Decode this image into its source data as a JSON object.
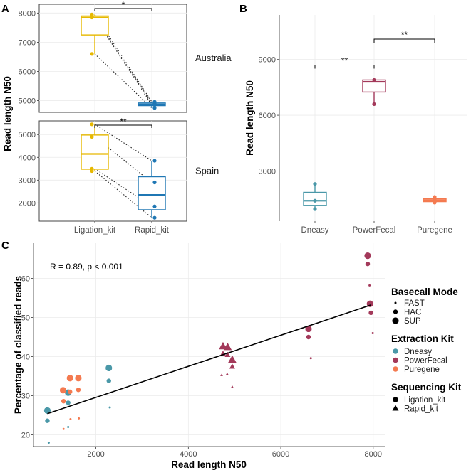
{
  "colors": {
    "Ligation_kit": "#E6B800",
    "Rapid_kit": "#1F77B4",
    "Dneasy": "#4A98A8",
    "PowerFecal": "#A3395A",
    "Puregene": "#F47A50",
    "panel_border": "#444444",
    "grid": "#EBEBEB"
  },
  "chart_data": [
    {
      "panel": "A",
      "type": "box",
      "ylabel": "Read length N50",
      "categories": [
        "Ligation_kit",
        "Rapid_kit"
      ],
      "facets": [
        {
          "name": "Australia",
          "ylim": [
            4600,
            8300
          ],
          "yticks": [
            5000,
            6000,
            7000,
            8000
          ],
          "boxes": [
            {
              "category": "Ligation_kit",
              "min": 6600,
              "q1": 7250,
              "median": 7850,
              "q3": 7900,
              "max": 7950,
              "points": [
                7950,
                7880,
                7850,
                6600
              ]
            },
            {
              "category": "Rapid_kit",
              "min": 4750,
              "q1": 4830,
              "median": 4870,
              "q3": 4920,
              "max": 4960,
              "points": [
                4960,
                4900,
                4850,
                4750
              ]
            }
          ],
          "pairs": [
            [
              7950,
              4960
            ],
            [
              7880,
              4900
            ],
            [
              7850,
              4850
            ],
            [
              6600,
              4750
            ]
          ],
          "significance": "*"
        },
        {
          "name": "Spain",
          "ylim": [
            1200,
            5600
          ],
          "yticks": [
            2000,
            3000,
            4000,
            5000
          ],
          "boxes": [
            {
              "category": "Ligation_kit",
              "min": 3400,
              "q1": 3480,
              "median": 4150,
              "q3": 4980,
              "max": 5450,
              "points": [
                5450,
                4900,
                3500,
                3400
              ]
            },
            {
              "category": "Rapid_kit",
              "min": 1350,
              "q1": 1700,
              "median": 2350,
              "q3": 3150,
              "max": 3850,
              "points": [
                3850,
                2900,
                1850,
                1350
              ]
            }
          ],
          "pairs": [
            [
              5450,
              3850
            ],
            [
              4900,
              2900
            ],
            [
              3500,
              1850
            ],
            [
              3400,
              1350
            ]
          ],
          "significance": "**"
        }
      ]
    },
    {
      "panel": "B",
      "type": "box",
      "ylabel": "Read length N50",
      "ylim": [
        300,
        11400
      ],
      "yticks": [
        3000,
        6000,
        9000
      ],
      "categories": [
        "Dneasy",
        "PowerFecal",
        "Puregene"
      ],
      "boxes": [
        {
          "category": "Dneasy",
          "min": 950,
          "q1": 1150,
          "median": 1400,
          "q3": 1850,
          "max": 2300,
          "points": [
            2300,
            1400,
            950
          ]
        },
        {
          "category": "PowerFecal",
          "min": 6600,
          "q1": 7250,
          "median": 7800,
          "q3": 7900,
          "max": 7950,
          "points": [
            7900,
            6600
          ]
        },
        {
          "category": "Puregene",
          "min": 1280,
          "q1": 1350,
          "median": 1430,
          "q3": 1500,
          "max": 1600,
          "points": [
            1600,
            1450,
            1300
          ]
        }
      ],
      "significance": [
        {
          "from": "Dneasy",
          "to": "PowerFecal",
          "y": 8700,
          "label": "**"
        },
        {
          "from": "PowerFecal",
          "to": "Puregene",
          "y": 10100,
          "label": "**"
        }
      ]
    },
    {
      "panel": "C",
      "type": "scatter",
      "xlabel": "Read length N50",
      "ylabel": "Percentage of classified reads",
      "xlim": [
        650,
        8250
      ],
      "ylim": [
        17,
        69
      ],
      "xticks": [
        2000,
        4000,
        6000,
        8000
      ],
      "yticks": [
        20,
        30,
        40,
        50,
        60
      ],
      "annotation": "R = 0.89, p < 0.001",
      "fit_line": {
        "x": [
          950,
          7950
        ],
        "y": [
          25.4,
          53.2
        ]
      },
      "points": [
        {
          "x": 950,
          "y": 26.2,
          "kit": "Dneasy",
          "mode": "SUP",
          "seq": "Ligation_kit"
        },
        {
          "x": 950,
          "y": 23.6,
          "kit": "Dneasy",
          "mode": "HAC",
          "seq": "Ligation_kit"
        },
        {
          "x": 980,
          "y": 18.0,
          "kit": "Dneasy",
          "mode": "FAST",
          "seq": "Ligation_kit"
        },
        {
          "x": 1400,
          "y": 30.8,
          "kit": "Dneasy",
          "mode": "SUP",
          "seq": "Ligation_kit"
        },
        {
          "x": 1400,
          "y": 28.2,
          "kit": "Dneasy",
          "mode": "HAC",
          "seq": "Ligation_kit"
        },
        {
          "x": 1400,
          "y": 22.0,
          "kit": "Dneasy",
          "mode": "FAST",
          "seq": "Ligation_kit"
        },
        {
          "x": 2280,
          "y": 37.1,
          "kit": "Dneasy",
          "mode": "SUP",
          "seq": "Ligation_kit"
        },
        {
          "x": 2280,
          "y": 33.8,
          "kit": "Dneasy",
          "mode": "HAC",
          "seq": "Ligation_kit"
        },
        {
          "x": 2300,
          "y": 27.0,
          "kit": "Dneasy",
          "mode": "FAST",
          "seq": "Ligation_kit"
        },
        {
          "x": 1290,
          "y": 31.4,
          "kit": "Puregene",
          "mode": "SUP",
          "seq": "Ligation_kit"
        },
        {
          "x": 1300,
          "y": 28.6,
          "kit": "Puregene",
          "mode": "HAC",
          "seq": "Ligation_kit"
        },
        {
          "x": 1300,
          "y": 21.5,
          "kit": "Puregene",
          "mode": "FAST",
          "seq": "Ligation_kit"
        },
        {
          "x": 1440,
          "y": 34.5,
          "kit": "Puregene",
          "mode": "SUP",
          "seq": "Ligation_kit"
        },
        {
          "x": 1440,
          "y": 31.0,
          "kit": "Puregene",
          "mode": "HAC",
          "seq": "Ligation_kit"
        },
        {
          "x": 1450,
          "y": 24.0,
          "kit": "Puregene",
          "mode": "FAST",
          "seq": "Ligation_kit"
        },
        {
          "x": 1620,
          "y": 34.5,
          "kit": "Puregene",
          "mode": "SUP",
          "seq": "Ligation_kit"
        },
        {
          "x": 1620,
          "y": 31.5,
          "kit": "Puregene",
          "mode": "HAC",
          "seq": "Ligation_kit"
        },
        {
          "x": 1630,
          "y": 24.2,
          "kit": "Puregene",
          "mode": "FAST",
          "seq": "Ligation_kit"
        },
        {
          "x": 4750,
          "y": 42.7,
          "kit": "PowerFecal",
          "mode": "SUP",
          "seq": "Rapid_kit"
        },
        {
          "x": 4750,
          "y": 40.8,
          "kit": "PowerFecal",
          "mode": "HAC",
          "seq": "Rapid_kit"
        },
        {
          "x": 4720,
          "y": 35.3,
          "kit": "PowerFecal",
          "mode": "FAST",
          "seq": "Rapid_kit"
        },
        {
          "x": 4850,
          "y": 42.5,
          "kit": "PowerFecal",
          "mode": "SUP",
          "seq": "Rapid_kit"
        },
        {
          "x": 4850,
          "y": 40.5,
          "kit": "PowerFecal",
          "mode": "HAC",
          "seq": "Rapid_kit"
        },
        {
          "x": 4840,
          "y": 35.6,
          "kit": "PowerFecal",
          "mode": "FAST",
          "seq": "Rapid_kit"
        },
        {
          "x": 4950,
          "y": 39.3,
          "kit": "PowerFecal",
          "mode": "SUP",
          "seq": "Rapid_kit"
        },
        {
          "x": 4950,
          "y": 37.5,
          "kit": "PowerFecal",
          "mode": "HAC",
          "seq": "Rapid_kit"
        },
        {
          "x": 4950,
          "y": 32.3,
          "kit": "PowerFecal",
          "mode": "FAST",
          "seq": "Rapid_kit"
        },
        {
          "x": 6600,
          "y": 47.1,
          "kit": "PowerFecal",
          "mode": "SUP",
          "seq": "Ligation_kit"
        },
        {
          "x": 6600,
          "y": 45.0,
          "kit": "PowerFecal",
          "mode": "HAC",
          "seq": "Ligation_kit"
        },
        {
          "x": 6650,
          "y": 39.6,
          "kit": "PowerFecal",
          "mode": "FAST",
          "seq": "Ligation_kit"
        },
        {
          "x": 7880,
          "y": 65.8,
          "kit": "PowerFecal",
          "mode": "SUP",
          "seq": "Ligation_kit"
        },
        {
          "x": 7880,
          "y": 63.7,
          "kit": "PowerFecal",
          "mode": "HAC",
          "seq": "Ligation_kit"
        },
        {
          "x": 7920,
          "y": 58.2,
          "kit": "PowerFecal",
          "mode": "FAST",
          "seq": "Ligation_kit"
        },
        {
          "x": 7930,
          "y": 53.5,
          "kit": "PowerFecal",
          "mode": "SUP",
          "seq": "Ligation_kit"
        },
        {
          "x": 7950,
          "y": 51.2,
          "kit": "PowerFecal",
          "mode": "HAC",
          "seq": "Ligation_kit"
        },
        {
          "x": 7990,
          "y": 46.0,
          "kit": "PowerFecal",
          "mode": "FAST",
          "seq": "Ligation_kit"
        }
      ],
      "legend": {
        "basecall_title": "Basecall Mode",
        "basecall": [
          "FAST",
          "HAC",
          "SUP"
        ],
        "kit_title": "Extraction Kit",
        "kits": [
          "Dneasy",
          "PowerFecal",
          "Puregene"
        ],
        "seq_title": "Sequencing Kit",
        "seq": [
          "Ligation_kit",
          "Rapid_kit"
        ]
      }
    }
  ],
  "labels": {
    "panel_a": "A",
    "panel_b": "B",
    "panel_c": "C"
  }
}
